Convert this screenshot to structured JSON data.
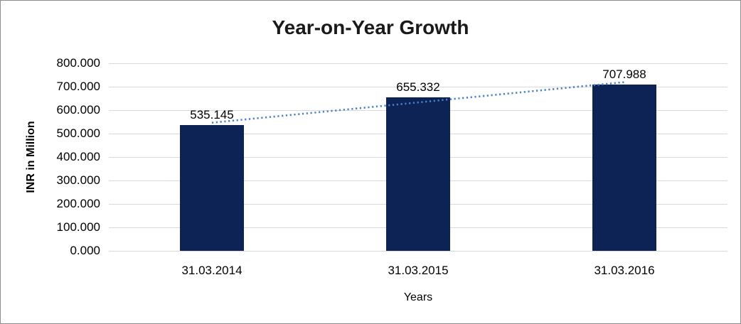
{
  "chart_data": {
    "type": "bar",
    "title": "Year-on-Year Growth",
    "categories": [
      "31.03.2014",
      "31.03.2015",
      "31.03.2016"
    ],
    "values": [
      535.145,
      655.332,
      707.988
    ],
    "bar_labels": [
      "535.145",
      "655.332",
      "707.988"
    ],
    "xlabel": "Years",
    "ylabel": "INR in Million",
    "ylim": [
      0,
      800
    ],
    "yticks": [
      "0.000",
      "100.000",
      "200.000",
      "300.000",
      "400.000",
      "500.000",
      "600.000",
      "700.000",
      "800.000"
    ],
    "grid": true,
    "legend": false,
    "trendline": {
      "type": "linear",
      "style": "dotted"
    },
    "colors": {
      "bar": "#0d2356",
      "trendline": "#4a82c8",
      "gridline": "#d9d9d9",
      "text": "#000000",
      "title": "#1a1a1a",
      "border": "#8c8c8c"
    }
  }
}
